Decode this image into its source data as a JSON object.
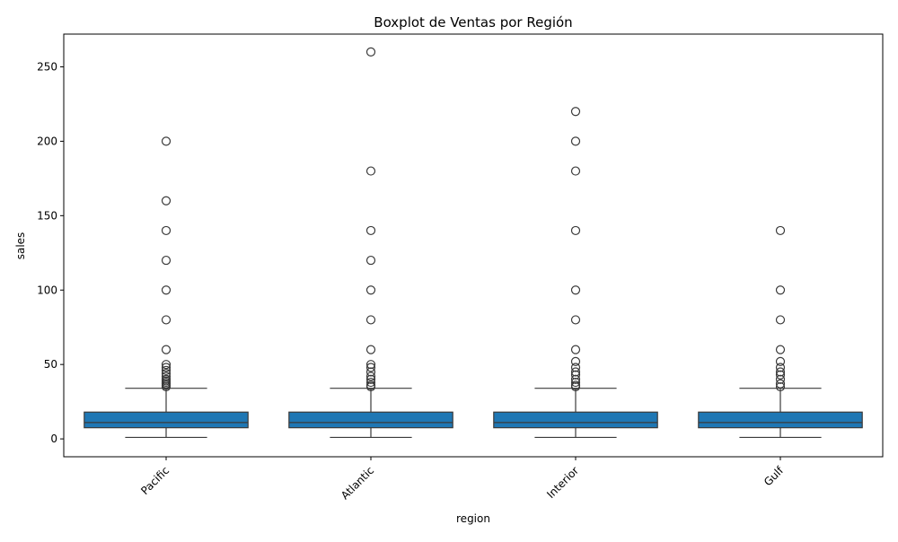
{
  "chart_data": {
    "type": "boxplot",
    "title": "Boxplot de Ventas por Región",
    "xlabel": "region",
    "ylabel": "sales",
    "ylim": [
      -12,
      272
    ],
    "y_ticks": [
      0,
      50,
      100,
      150,
      200,
      250
    ],
    "grid": false,
    "box_color": "#1f77b4",
    "categories": [
      "Pacific",
      "Atlantic",
      "Interior",
      "Gulf"
    ],
    "boxes": [
      {
        "name": "Pacific",
        "whisker_low": 1,
        "q1": 7.5,
        "median": 11,
        "q3": 18,
        "whisker_high": 34,
        "outliers": [
          35,
          36,
          37,
          38,
          39,
          40,
          42,
          44,
          46,
          48,
          50,
          60,
          80,
          100,
          120,
          140,
          160,
          200
        ]
      },
      {
        "name": "Atlantic",
        "whisker_low": 1,
        "q1": 7.5,
        "median": 11,
        "q3": 18,
        "whisker_high": 34,
        "outliers": [
          35,
          36,
          38,
          40,
          42,
          45,
          48,
          50,
          60,
          80,
          100,
          120,
          140,
          180,
          260
        ]
      },
      {
        "name": "Interior",
        "whisker_low": 1,
        "q1": 7.5,
        "median": 11,
        "q3": 18,
        "whisker_high": 34,
        "outliers": [
          35,
          36,
          38,
          40,
          43,
          45,
          48,
          52,
          60,
          80,
          100,
          140,
          180,
          200,
          220
        ]
      },
      {
        "name": "Gulf",
        "whisker_low": 1,
        "q1": 7.5,
        "median": 11,
        "q3": 18,
        "whisker_high": 34,
        "outliers": [
          35,
          37,
          40,
          43,
          45,
          48,
          52,
          60,
          80,
          100,
          140
        ]
      }
    ]
  }
}
